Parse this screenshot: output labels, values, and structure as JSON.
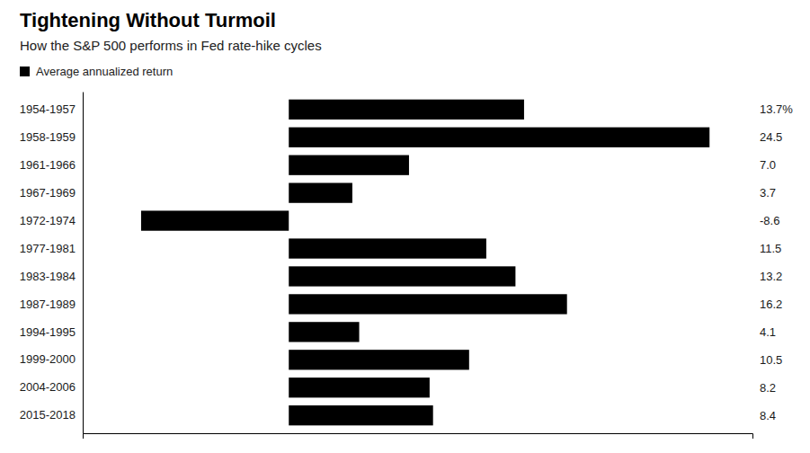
{
  "chart_data": {
    "type": "bar",
    "orientation": "horizontal",
    "title": "Tightening Without Turmoil",
    "subtitle": "How the S&P 500 performs in Fed rate-hike cycles",
    "categories": [
      "1954-1957",
      "1958-1959",
      "1961-1966",
      "1967-1969",
      "1972-1974",
      "1977-1981",
      "1983-1984",
      "1987-1989",
      "1994-1995",
      "1999-2000",
      "2004-2006",
      "2015-2018"
    ],
    "series": [
      {
        "name": "Average annualized return",
        "color": "#000000",
        "values": [
          13.7,
          24.5,
          7.0,
          3.7,
          -8.6,
          11.5,
          13.2,
          16.2,
          4.1,
          10.5,
          8.2,
          8.4
        ],
        "value_labels": [
          "13.7%",
          "24.5",
          "7.0",
          "3.7",
          "-8.6",
          "11.5",
          "13.2",
          "16.2",
          "4.1",
          "10.5",
          "8.2",
          "8.4"
        ]
      }
    ],
    "xlim": [
      -12,
      27
    ],
    "data_labels": true,
    "tick_labels": "y",
    "legend": "top",
    "grid": false
  }
}
